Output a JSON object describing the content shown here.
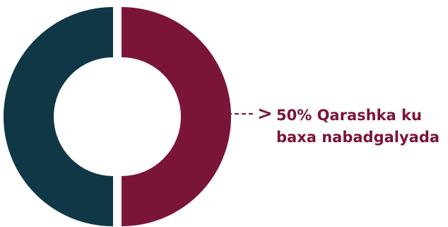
{
  "chart_data": {
    "type": "pie",
    "slices": [
      {
        "label": "Qarashka ku baxa nabadgalyada",
        "value": 50,
        "color": "#7b1439"
      },
      {
        "label": "",
        "value": 50,
        "color": "#0f3746"
      }
    ],
    "annotation": {
      "line1": "50% Qarashka ku",
      "line2": "baxa nabadgalyada"
    }
  }
}
